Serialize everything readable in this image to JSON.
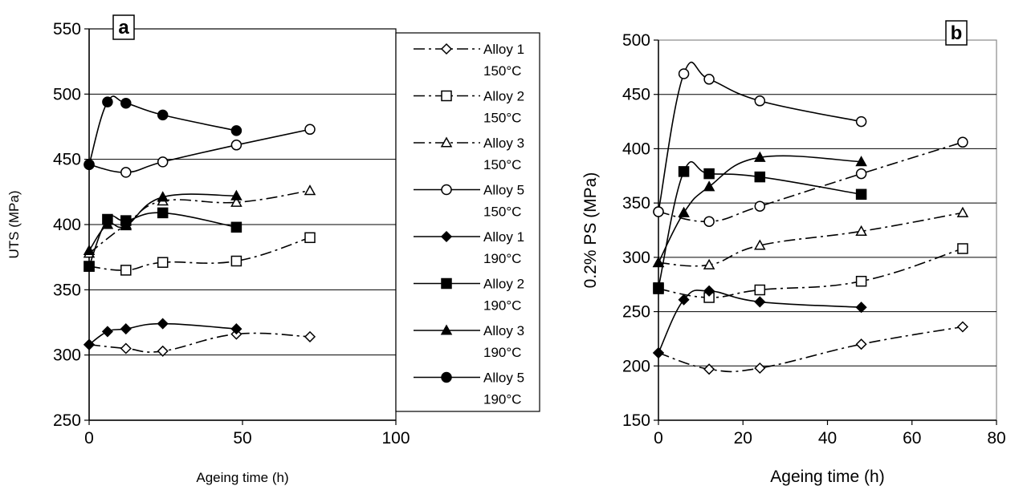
{
  "chart_data": [
    {
      "type": "line",
      "panel_label": "a",
      "xlabel": "Ageing time (h)",
      "ylabel": "UTS (MPa)",
      "xlim": [
        0,
        100
      ],
      "ylim": [
        250,
        550
      ],
      "x_ticks": [
        "0",
        "50",
        "100"
      ],
      "y_ticks": [
        "250",
        "300",
        "350",
        "400",
        "450",
        "500",
        "550"
      ],
      "grid": "horizontal",
      "legend_position": "right",
      "legend": [
        {
          "line1": "Alloy 1",
          "line2": "150°C"
        },
        {
          "line1": "Alloy 2",
          "line2": "150°C"
        },
        {
          "line1": "Alloy 3",
          "line2": "150°C"
        },
        {
          "line1": "Alloy 5",
          "line2": "150°C"
        },
        {
          "line1": "Alloy 1",
          "line2": "190°C"
        },
        {
          "line1": "Alloy 2",
          "line2": "190°C"
        },
        {
          "line1": "Alloy 3",
          "line2": "190°C"
        },
        {
          "line1": "Alloy 5",
          "line2": "190°C"
        }
      ],
      "series": [
        {
          "marker": "diamond",
          "filled": false,
          "dash": "dashdot",
          "x": [
            0,
            12,
            24,
            48,
            72
          ],
          "y": [
            308,
            305,
            303,
            316,
            314
          ]
        },
        {
          "marker": "square",
          "filled": false,
          "dash": "dashdot",
          "x": [
            0,
            12,
            24,
            48,
            72
          ],
          "y": [
            368,
            365,
            371,
            372,
            390
          ]
        },
        {
          "marker": "triangle",
          "filled": false,
          "dash": "dashdot",
          "x": [
            0,
            12,
            24,
            48,
            72
          ],
          "y": [
            378,
            400,
            418,
            417,
            426
          ]
        },
        {
          "marker": "circle",
          "filled": false,
          "dash": "solid",
          "x": [
            0,
            12,
            24,
            48,
            72
          ],
          "y": [
            446,
            440,
            448,
            461,
            473
          ]
        },
        {
          "marker": "diamond",
          "filled": true,
          "dash": "solid",
          "x": [
            0,
            6,
            12,
            24,
            48
          ],
          "y": [
            308,
            318,
            320,
            324,
            320
          ]
        },
        {
          "marker": "square",
          "filled": true,
          "dash": "solid",
          "x": [
            0,
            6,
            12,
            24,
            48
          ],
          "y": [
            368,
            404,
            403,
            409,
            398
          ]
        },
        {
          "marker": "triangle",
          "filled": true,
          "dash": "solid",
          "x": [
            0,
            6,
            12,
            24,
            48
          ],
          "y": [
            380,
            400,
            399,
            421,
            422
          ]
        },
        {
          "marker": "circle",
          "filled": true,
          "dash": "solid",
          "x": [
            0,
            6,
            12,
            24,
            48
          ],
          "y": [
            446,
            494,
            493,
            484,
            472
          ]
        }
      ]
    },
    {
      "type": "line",
      "panel_label": "b",
      "xlabel": "Ageing time (h)",
      "ylabel": "0.2% PS (MPa)",
      "xlim": [
        0,
        80
      ],
      "ylim": [
        150,
        500
      ],
      "x_ticks": [
        "0",
        "20",
        "40",
        "60",
        "80"
      ],
      "y_ticks": [
        "150",
        "200",
        "250",
        "300",
        "350",
        "400",
        "450",
        "500"
      ],
      "grid": "horizontal",
      "series": [
        {
          "marker": "diamond",
          "filled": false,
          "dash": "dashdot",
          "x": [
            0,
            12,
            24,
            48,
            72
          ],
          "y": [
            212,
            197,
            198,
            220,
            236
          ]
        },
        {
          "marker": "square",
          "filled": false,
          "dash": "dashdot",
          "x": [
            0,
            12,
            24,
            48,
            72
          ],
          "y": [
            271,
            263,
            270,
            278,
            308
          ]
        },
        {
          "marker": "triangle",
          "filled": false,
          "dash": "dashdot",
          "x": [
            0,
            12,
            24,
            48,
            72
          ],
          "y": [
            295,
            293,
            311,
            324,
            341
          ]
        },
        {
          "marker": "circle",
          "filled": false,
          "dash": "dashdot",
          "x": [
            0,
            12,
            24,
            48,
            72
          ],
          "y": [
            342,
            333,
            347,
            377,
            406
          ]
        },
        {
          "marker": "diamond",
          "filled": true,
          "dash": "solid",
          "x": [
            0,
            6,
            12,
            24,
            48
          ],
          "y": [
            212,
            261,
            269,
            259,
            254
          ]
        },
        {
          "marker": "square",
          "filled": true,
          "dash": "solid",
          "x": [
            0,
            6,
            12,
            24,
            48
          ],
          "y": [
            272,
            379,
            377,
            374,
            358
          ]
        },
        {
          "marker": "triangle",
          "filled": true,
          "dash": "solid",
          "x": [
            0,
            6,
            12,
            24,
            48
          ],
          "y": [
            295,
            341,
            365,
            392,
            388
          ]
        },
        {
          "marker": "circle",
          "filled": false,
          "dash": "solid",
          "x": [
            0,
            6,
            12,
            24,
            48
          ],
          "y": [
            342,
            469,
            464,
            444,
            425
          ]
        }
      ]
    }
  ]
}
